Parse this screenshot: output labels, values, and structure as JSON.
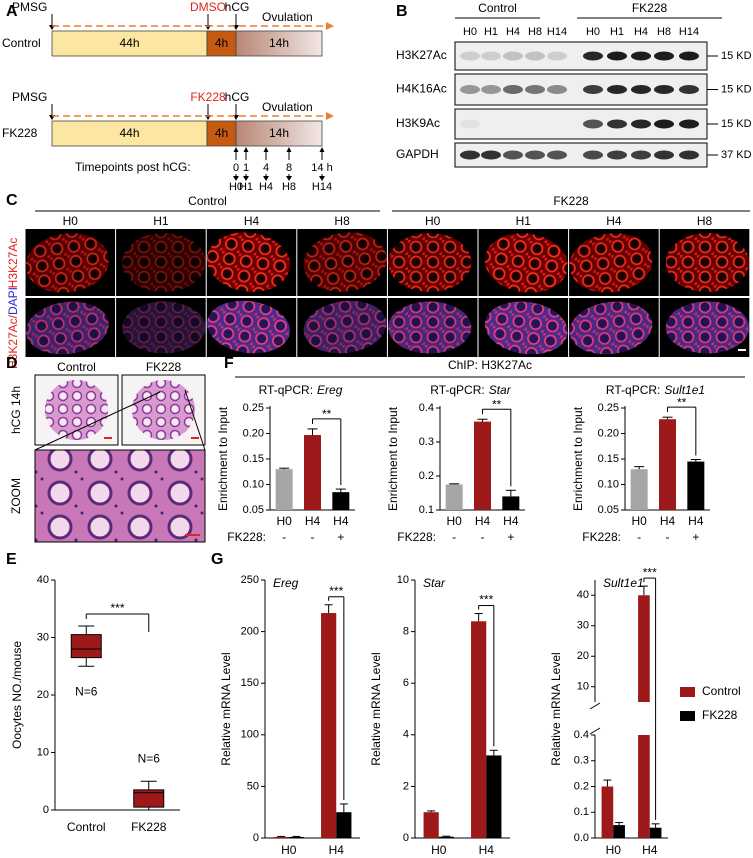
{
  "panel_a": {
    "label": "A",
    "pmsg": "PMSG",
    "hcg": "hCG",
    "ovulation": "Ovulation",
    "rows": [
      {
        "name": "Control",
        "treatment": "DMSO"
      },
      {
        "name": "FK228",
        "treatment": "FK228"
      }
    ],
    "durations": [
      "44h",
      "4h",
      "14h"
    ],
    "timepoints_label": "Timepoints post hCG:",
    "timepoints": [
      "0",
      "1",
      "4",
      "8",
      "14 h"
    ],
    "timepoint_names": [
      "H0",
      "H1",
      "H4",
      "H8",
      "H14"
    ]
  },
  "panel_b": {
    "label": "B",
    "groups": [
      "Control",
      "FK228"
    ],
    "lanes": [
      "H0",
      "H1",
      "H4",
      "H8",
      "H14"
    ],
    "blots": [
      {
        "name": "H3K27Ac",
        "size": "15 KD"
      },
      {
        "name": "H4K16Ac",
        "size": "15 KD"
      },
      {
        "name": "H3K9Ac",
        "size": "15 KD"
      },
      {
        "name": "GAPDH",
        "size": "37 KD"
      }
    ]
  },
  "panel_c": {
    "label": "C",
    "groups": [
      "Control",
      "FK228"
    ],
    "timepoints": [
      "H0",
      "H1",
      "H4",
      "H8"
    ],
    "stain_labels": [
      [
        "H3K27Ac"
      ],
      [
        "H3K27Ac/",
        "DAPI"
      ]
    ]
  },
  "panel_d": {
    "label": "D",
    "groups": [
      "Control",
      "FK228"
    ],
    "row_labels": [
      "hCG 14h",
      "ZOOM"
    ]
  },
  "panel_e": {
    "label": "E"
  },
  "panel_f": {
    "label": "F",
    "title": "ChIP: H3K27Ac"
  },
  "panel_g": {
    "label": "G"
  },
  "chart_data": [
    {
      "type": "box",
      "ylabel": "Oocytes NO./mouse",
      "categories": [
        "Control",
        "FK228"
      ],
      "boxes": [
        {
          "min": 25,
          "q1": 26.5,
          "median": 28,
          "q3": 30.5,
          "max": 32,
          "n_label": "N=6"
        },
        {
          "min": 0,
          "q1": 0.5,
          "median": 3,
          "q3": 3.5,
          "max": 5,
          "n_label": "N=6"
        }
      ],
      "color": "#9e1a1a",
      "ylim": [
        0,
        40
      ],
      "yticks": [
        0,
        10,
        20,
        30,
        40
      ],
      "significance": "***"
    },
    {
      "type": "bar",
      "title_prefix": "RT-qPCR:",
      "title_gene": "Ereg",
      "ylabel": "Enrichment to Input",
      "categories": [
        "H0",
        "H4",
        "H4"
      ],
      "treatment_label": "FK228:",
      "treatment": [
        "-",
        "-",
        "+"
      ],
      "values": [
        0.13,
        0.197,
        0.085
      ],
      "errors": [
        0.002,
        0.012,
        0.006
      ],
      "colors": [
        "#a6a6a6",
        "#9e1a1a",
        "#000000"
      ],
      "ylim": [
        0.05,
        0.25
      ],
      "yticks": [
        0.05,
        {
          "value": 0.1,
          "label": "0.10"
        },
        0.15,
        {
          "value": 0.2,
          "label": "0.20"
        },
        0.25
      ],
      "significance": "**"
    },
    {
      "type": "bar",
      "title_prefix": "RT-qPCR:",
      "title_gene": "Star",
      "ylabel": "Enrichment to Input",
      "categories": [
        "H0",
        "H4",
        "H4"
      ],
      "treatment_label": "FK228:",
      "treatment": [
        "-",
        "-",
        "+"
      ],
      "values": [
        0.175,
        0.36,
        0.14
      ],
      "errors": [
        0.002,
        0.007,
        0.018
      ],
      "colors": [
        "#a6a6a6",
        "#9e1a1a",
        "#000000"
      ],
      "ylim": [
        0.1,
        0.4
      ],
      "yticks": [
        0.1,
        0.2,
        0.3,
        0.4
      ],
      "significance": "**"
    },
    {
      "type": "bar",
      "title_prefix": "RT-qPCR:",
      "title_gene": "Sult1e1",
      "ylabel": "Enrichment to Input",
      "categories": [
        "H0",
        "H4",
        "H4"
      ],
      "treatment_label": "FK228:",
      "treatment": [
        "-",
        "-",
        "+"
      ],
      "values": [
        0.13,
        0.228,
        0.145
      ],
      "errors": [
        0.005,
        0.004,
        0.004
      ],
      "colors": [
        "#a6a6a6",
        "#9e1a1a",
        "#000000"
      ],
      "ylim": [
        0.05,
        0.25
      ],
      "yticks": [
        0.05,
        {
          "value": 0.1,
          "label": "0.10"
        },
        0.15,
        {
          "value": 0.2,
          "label": "0.20"
        },
        0.25
      ],
      "significance": "**"
    },
    {
      "type": "grouped_bar",
      "title": "Ereg",
      "ylabel": "Relative  mRNA Level",
      "categories": [
        "H0",
        "H4"
      ],
      "series": [
        {
          "name": "Control",
          "color": "#9e1a1a",
          "values": [
            1,
            218
          ],
          "errors": [
            0.5,
            8
          ]
        },
        {
          "name": "FK228",
          "color": "#000000",
          "values": [
            1,
            25
          ],
          "errors": [
            0.5,
            8
          ]
        }
      ],
      "ylim": [
        0,
        250
      ],
      "yticks": [
        0,
        50,
        100,
        150,
        200,
        250
      ],
      "significance": "***"
    },
    {
      "type": "grouped_bar",
      "title": "Star",
      "ylabel": "Relative  mRNA Level",
      "categories": [
        "H0",
        "H4"
      ],
      "series": [
        {
          "name": "Control",
          "color": "#9e1a1a",
          "values": [
            1,
            8.4
          ],
          "errors": [
            0.05,
            0.3
          ]
        },
        {
          "name": "FK228",
          "color": "#000000",
          "values": [
            0.05,
            3.2
          ],
          "errors": [
            0.02,
            0.2
          ]
        }
      ],
      "ylim": [
        0,
        10
      ],
      "yticks": [
        0,
        2,
        4,
        6,
        8,
        10
      ],
      "significance": "***"
    },
    {
      "type": "grouped_bar",
      "title": "Sult1e1",
      "ylabel": "Relative  mRNA Level",
      "categories": [
        "H0",
        "H4"
      ],
      "series": [
        {
          "name": "Control",
          "color": "#9e1a1a",
          "values": [
            0.2,
            40
          ],
          "errors": [
            0.025,
            3
          ]
        },
        {
          "name": "FK228",
          "color": "#000000",
          "values": [
            0.05,
            0.04
          ],
          "errors": [
            0.01,
            0.015
          ]
        }
      ],
      "ylim_lower": [
        0,
        0.4
      ],
      "yticks_lower": [
        {
          "value": 0,
          "label": "0.0"
        },
        0.1,
        0.2,
        0.3,
        0.4
      ],
      "ylim_upper": [
        5,
        45
      ],
      "yticks_upper": [
        10,
        20,
        30,
        40
      ],
      "significance": "***",
      "legend": "right"
    }
  ]
}
